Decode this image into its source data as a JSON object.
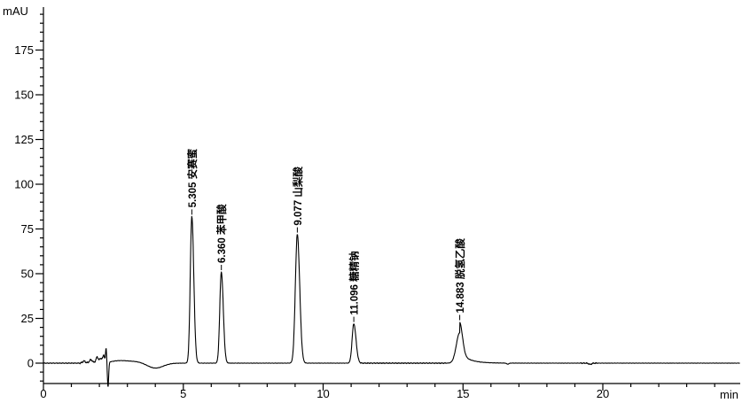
{
  "chart_data": {
    "type": "line",
    "title": "",
    "xlabel": "min",
    "ylabel": "mAU",
    "xlim": [
      0,
      24.9
    ],
    "ylim": [
      -11,
      199
    ],
    "x_major_ticks": [
      0,
      5,
      10,
      15,
      20
    ],
    "x_minor_tick_step": 1,
    "y_major_ticks": [
      0,
      25,
      50,
      75,
      100,
      125,
      150,
      175
    ],
    "y_minor_tick_step": 5,
    "grid": false,
    "legend": false,
    "background_color": "#ffffff",
    "axis_color": "#000000",
    "trace_color": "#000000",
    "peaks": [
      {
        "rt": 5.305,
        "rt_label": "5.305",
        "compound": "安赛蜜",
        "height_mAU": 82,
        "gauss_h": 82,
        "sigma_left": 0.055,
        "sigma_right": 0.07,
        "tail_h": 0,
        "tail_tau": 0.2
      },
      {
        "rt": 6.36,
        "rt_label": "6.360",
        "compound": "苯甲酸",
        "height_mAU": 51,
        "gauss_h": 51,
        "sigma_left": 0.055,
        "sigma_right": 0.07,
        "tail_h": 0,
        "tail_tau": 0.2
      },
      {
        "rt": 9.077,
        "rt_label": "9.077",
        "compound": "山梨酸",
        "height_mAU": 72,
        "gauss_h": 72,
        "sigma_left": 0.07,
        "sigma_right": 0.085,
        "tail_h": 0,
        "tail_tau": 0.2
      },
      {
        "rt": 11.096,
        "rt_label": "11.096",
        "compound": "糖精钠",
        "height_mAU": 22,
        "gauss_h": 22,
        "sigma_left": 0.06,
        "sigma_right": 0.08,
        "tail_h": 0,
        "tail_tau": 0.2
      },
      {
        "rt": 14.883,
        "rt_label": "14.883",
        "compound": "脱氢乙酸",
        "height_mAU": 23,
        "gauss_h": 17,
        "sigma_left": 0.12,
        "sigma_right": 0.1,
        "tail_h": 6,
        "tail_tau": 0.33
      }
    ],
    "baseline_events": [
      {
        "t": 1.45,
        "h": 1.2,
        "w": 0.05
      },
      {
        "t": 1.7,
        "h": 1.8,
        "w": 0.06
      },
      {
        "t": 1.92,
        "h": 3.2,
        "w": 0.045
      },
      {
        "t": 2.06,
        "h": 2.6,
        "w": 0.05
      },
      {
        "t": 2.16,
        "h": 4.0,
        "w": 0.03
      },
      {
        "t": 2.24,
        "h": 8.0,
        "w": 0.018
      },
      {
        "t": 2.31,
        "h": -14.0,
        "w": 0.022
      },
      {
        "t": 2.7,
        "h": 1.3,
        "w": 0.3
      },
      {
        "t": 3.3,
        "h": 0.8,
        "w": 0.3
      },
      {
        "t": 4.0,
        "h": -2.8,
        "w": 0.28
      },
      {
        "t": 16.6,
        "h": -0.6,
        "w": 0.04
      },
      {
        "t": 19.55,
        "h": -0.7,
        "w": 0.05
      }
    ],
    "noise_zones": [
      {
        "from": 0.0,
        "to": 1.3,
        "amp": 0.22
      },
      {
        "from": 1.3,
        "to": 2.22,
        "amp": 0.5
      },
      {
        "from": 2.4,
        "to": 11.2,
        "amp": 0.1
      },
      {
        "from": 11.2,
        "to": 14.4,
        "amp": 0.28
      },
      {
        "from": 14.4,
        "to": 24.91,
        "amp": 0.1
      },
      {
        "from": 19.2,
        "to": 19.8,
        "amp": 0.35
      }
    ]
  }
}
